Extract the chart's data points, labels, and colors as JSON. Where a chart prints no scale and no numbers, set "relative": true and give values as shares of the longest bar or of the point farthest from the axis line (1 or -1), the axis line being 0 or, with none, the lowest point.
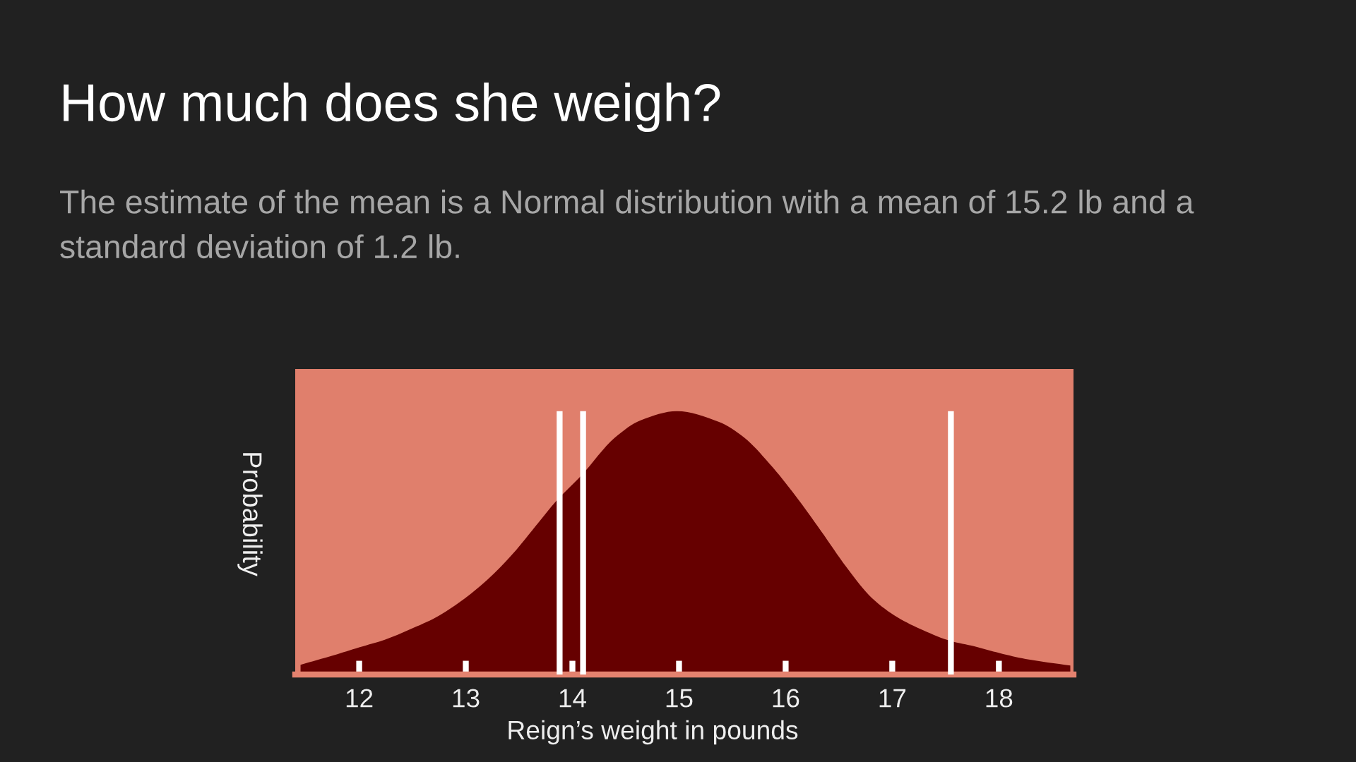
{
  "chart_data": {
    "type": "area",
    "title": "How much does she weigh?",
    "subtitle": "The estimate of the mean is a Normal distribution with a mean of 15.2 lb and a standard deviation of 1.2 lb.",
    "xlabel": "Reign’s weight in pounds",
    "ylabel": "Probability",
    "relative": true,
    "color": "#660000",
    "x": [
      11.45,
      11.76,
      12.0,
      12.24,
      12.48,
      12.72,
      12.96,
      13.2,
      13.44,
      13.68,
      13.84,
      14.08,
      14.4,
      14.64,
      14.98,
      15.37,
      15.61,
      15.85,
      16.09,
      16.33,
      16.57,
      16.81,
      17.05,
      17.29,
      17.55,
      17.77,
      18.01,
      18.25,
      18.67
    ],
    "values": [
      0.037,
      0.073,
      0.103,
      0.132,
      0.172,
      0.217,
      0.28,
      0.359,
      0.458,
      0.576,
      0.655,
      0.754,
      0.9,
      0.965,
      1.0,
      0.96,
      0.9,
      0.8,
      0.68,
      0.546,
      0.408,
      0.29,
      0.217,
      0.168,
      0.127,
      0.107,
      0.081,
      0.059,
      0.034
    ],
    "xlim": [
      11.4,
      18.7
    ],
    "xticks": [
      12,
      13,
      14,
      15,
      16,
      17,
      18
    ],
    "ref_lines": [
      {
        "axis": "x",
        "value": 13.88,
        "color": "#ffffff"
      },
      {
        "axis": "x",
        "value": 14.1,
        "color": "#ffffff"
      },
      {
        "axis": "x",
        "value": 17.55,
        "color": "#ffffff"
      }
    ]
  }
}
